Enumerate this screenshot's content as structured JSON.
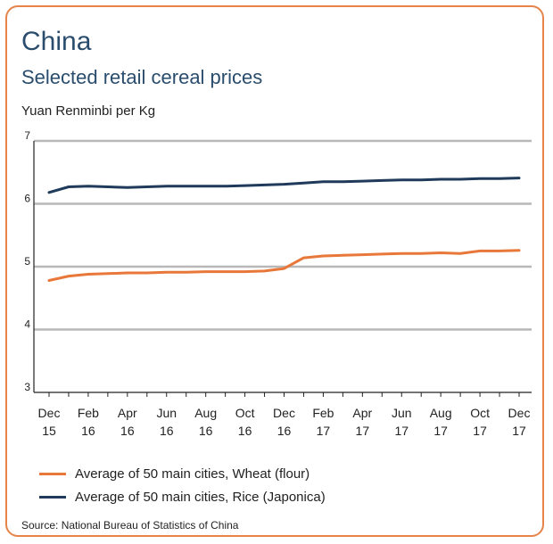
{
  "chart_data": {
    "type": "line",
    "title": "China",
    "subtitle": "Selected retail cereal prices",
    "ylabel": "Yuan Renminbi per Kg",
    "ylim": [
      3,
      7
    ],
    "yticks": [
      3,
      4,
      5,
      6,
      7
    ],
    "grid": true,
    "x_tick_labels": [
      [
        "Dec",
        "15"
      ],
      [
        "Feb",
        "16"
      ],
      [
        "Apr",
        "16"
      ],
      [
        "Jun",
        "16"
      ],
      [
        "Aug",
        "16"
      ],
      [
        "Oct",
        "16"
      ],
      [
        "Dec",
        "16"
      ],
      [
        "Feb",
        "17"
      ],
      [
        "Apr",
        "17"
      ],
      [
        "Jun",
        "17"
      ],
      [
        "Aug",
        "17"
      ],
      [
        "Oct",
        "17"
      ],
      [
        "Dec",
        "17"
      ]
    ],
    "x": [
      "2015-12",
      "2016-01",
      "2016-02",
      "2016-03",
      "2016-04",
      "2016-05",
      "2016-06",
      "2016-07",
      "2016-08",
      "2016-09",
      "2016-10",
      "2016-11",
      "2016-12",
      "2017-01",
      "2017-02",
      "2017-03",
      "2017-04",
      "2017-05",
      "2017-06",
      "2017-07",
      "2017-08",
      "2017-09",
      "2017-10",
      "2017-11",
      "2017-12"
    ],
    "series": [
      {
        "name": "Average of 50 main cities, Wheat (flour)",
        "color": "#e8783a",
        "values": [
          4.78,
          4.85,
          4.88,
          4.89,
          4.9,
          4.9,
          4.91,
          4.91,
          4.92,
          4.92,
          4.92,
          4.93,
          4.97,
          5.14,
          5.17,
          5.18,
          5.19,
          5.2,
          5.21,
          5.21,
          5.22,
          5.21,
          5.25,
          5.25,
          5.26
        ]
      },
      {
        "name": "Average of 50 main cities, Rice (Japonica)",
        "color": "#1f3a5a",
        "values": [
          6.18,
          6.27,
          6.28,
          6.27,
          6.26,
          6.27,
          6.28,
          6.28,
          6.28,
          6.28,
          6.29,
          6.3,
          6.31,
          6.33,
          6.35,
          6.35,
          6.36,
          6.37,
          6.38,
          6.38,
          6.39,
          6.39,
          6.4,
          6.4,
          6.41
        ]
      }
    ],
    "legend_position": "bottom",
    "source": "Source: National Bureau of Statistics of China"
  }
}
